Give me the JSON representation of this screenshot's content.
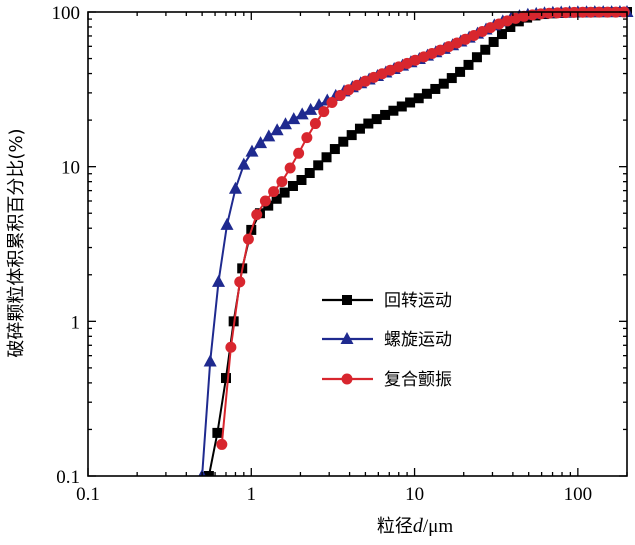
{
  "chart_data": {
    "type": "line",
    "x_scale": "log",
    "y_scale": "log",
    "xlim": [
      0.1,
      200
    ],
    "ylim": [
      0.1,
      100
    ],
    "x_ticks": [
      {
        "value": 0.1,
        "label": "0.1"
      },
      {
        "value": 1,
        "label": "1"
      },
      {
        "value": 10,
        "label": "10"
      },
      {
        "value": 100,
        "label": "100"
      }
    ],
    "y_ticks": [
      {
        "value": 0.1,
        "label": "0.1"
      },
      {
        "value": 1,
        "label": "1"
      },
      {
        "value": 10,
        "label": "10"
      },
      {
        "value": 100,
        "label": "100"
      }
    ],
    "xlabel": {
      "prefix": "粒径",
      "variable": "d",
      "unit": "/μm"
    },
    "ylabel": "破碎颗粒体积累积百分比(%)",
    "legend_position": "center-right",
    "series": [
      {
        "name": "回转运动",
        "color": "#000000",
        "marker": "square",
        "x": [
          0.55,
          0.62,
          0.7,
          0.78,
          0.88,
          1.0,
          1.13,
          1.27,
          1.43,
          1.6,
          1.8,
          2.03,
          2.28,
          2.57,
          2.89,
          3.25,
          3.66,
          4.12,
          4.63,
          5.21,
          5.86,
          6.6,
          7.42,
          8.35,
          9.39,
          10.6,
          11.9,
          13.4,
          15.1,
          16.9,
          19.0,
          21.4,
          24.1,
          27.1,
          30.5,
          34.3,
          38.6,
          43.5,
          48.9,
          55.0,
          61.9,
          69.7,
          78.4,
          88.2,
          99.2,
          112,
          126,
          141,
          159,
          179,
          200
        ],
        "values": [
          0.1,
          0.19,
          0.43,
          1.0,
          2.2,
          3.9,
          5.0,
          5.6,
          6.2,
          6.8,
          7.5,
          8.2,
          9.1,
          10.2,
          11.5,
          13.0,
          14.5,
          16.0,
          17.6,
          19.0,
          20.3,
          21.6,
          23.0,
          24.5,
          26.0,
          27.7,
          29.6,
          31.8,
          34.4,
          37.4,
          41.0,
          45.5,
          51.0,
          57.0,
          64.0,
          72.0,
          80.0,
          87.0,
          92.0,
          95.0,
          97.0,
          98.0,
          98.6,
          99.0,
          99.3,
          99.5,
          99.6,
          99.7,
          99.8,
          99.9,
          100.0
        ]
      },
      {
        "name": "螺旋运动",
        "color": "#1f2a8f",
        "marker": "triangle",
        "x": [
          0.5,
          0.56,
          0.63,
          0.71,
          0.8,
          0.9,
          1.01,
          1.14,
          1.28,
          1.44,
          1.62,
          1.82,
          2.05,
          2.31,
          2.6,
          2.92,
          3.29,
          3.7,
          4.16,
          4.68,
          5.27,
          5.93,
          6.67,
          7.5,
          8.44,
          9.5,
          10.7,
          12.0,
          13.5,
          15.2,
          17.1,
          19.2,
          21.6,
          24.3,
          27.4,
          30.8,
          34.7,
          39.0,
          43.9,
          49.4,
          55.6,
          62.5,
          70.3,
          79.1,
          89.0,
          100,
          113,
          127,
          143,
          161,
          181,
          200
        ],
        "values": [
          0.1,
          0.55,
          1.8,
          4.2,
          7.2,
          10.3,
          12.5,
          14.2,
          15.7,
          17.2,
          18.8,
          20.3,
          21.8,
          23.3,
          25.0,
          26.8,
          28.7,
          30.7,
          32.6,
          34.6,
          36.6,
          38.6,
          40.6,
          42.8,
          45.0,
          47.3,
          49.7,
          52.2,
          54.9,
          57.8,
          61.0,
          64.5,
          68.3,
          72.5,
          77.0,
          82.0,
          87.0,
          91.0,
          94.0,
          96.0,
          97.3,
          98.2,
          98.8,
          99.2,
          99.5,
          99.6,
          99.7,
          99.8,
          99.9,
          99.9,
          100.0,
          100.0
        ]
      },
      {
        "name": "复合颤振",
        "color": "#d8262e",
        "marker": "circle",
        "x": [
          0.66,
          0.75,
          0.85,
          0.96,
          1.08,
          1.22,
          1.37,
          1.54,
          1.73,
          1.95,
          2.19,
          2.47,
          2.78,
          3.12,
          3.51,
          3.95,
          4.45,
          5.0,
          5.63,
          6.33,
          7.12,
          8.01,
          9.01,
          10.1,
          11.4,
          12.8,
          14.4,
          16.2,
          18.2,
          20.5,
          23.1,
          26.0,
          29.2,
          32.9,
          37.0,
          41.6,
          46.8,
          52.7,
          59.3,
          66.7,
          75.0,
          84.4,
          95.0,
          107,
          120,
          135,
          152,
          171,
          192
        ],
        "values": [
          0.16,
          0.68,
          1.8,
          3.4,
          4.9,
          6.0,
          6.9,
          8.0,
          9.8,
          12.2,
          15.4,
          19.0,
          22.7,
          26.0,
          28.9,
          31.4,
          33.6,
          35.7,
          37.8,
          39.9,
          42.0,
          44.2,
          46.5,
          48.8,
          51.3,
          53.9,
          56.7,
          59.7,
          63.0,
          66.6,
          70.5,
          74.8,
          79.2,
          83.6,
          87.6,
          91.0,
          93.8,
          95.8,
          97.2,
          98.1,
          98.7,
          99.1,
          99.4,
          99.6,
          99.7,
          99.8,
          99.9,
          99.9,
          100.0
        ]
      }
    ]
  }
}
